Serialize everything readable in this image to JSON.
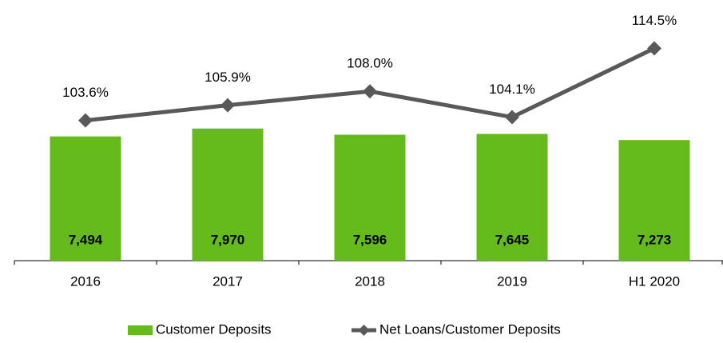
{
  "chart_data": {
    "type": "bar-line",
    "categories": [
      "2016",
      "2017",
      "2018",
      "2019",
      "H1 2020"
    ],
    "series": [
      {
        "name": "Customer Deposits",
        "type": "bar",
        "color": "#64bb1b",
        "values": [
          7494,
          7970,
          7596,
          7645,
          7273
        ],
        "value_labels": [
          "7,494",
          "7,970",
          "7,596",
          "7,645",
          "7,273"
        ]
      },
      {
        "name": "Net Loans/Customer Deposits",
        "type": "line",
        "axis": "y2",
        "color": "#595959",
        "values": [
          103.6,
          105.9,
          108.0,
          104.1,
          114.5
        ],
        "value_labels": [
          "103.6%",
          "105.9%",
          "108.0%",
          "104.1%",
          "114.5%"
        ]
      }
    ],
    "ylim": [
      0,
      15000
    ],
    "y2lim": [
      82.4,
      120
    ],
    "legend": "bottom"
  }
}
